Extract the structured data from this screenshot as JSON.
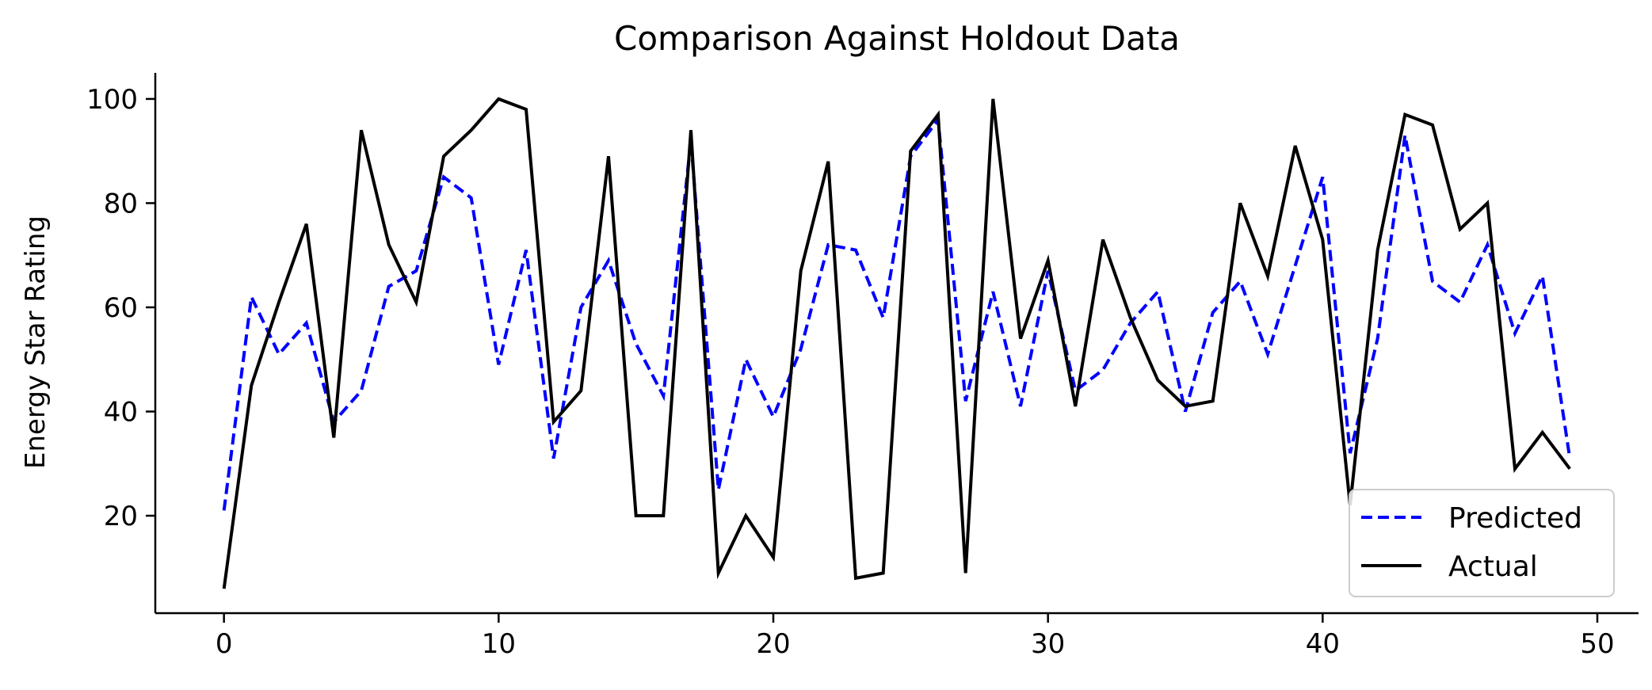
{
  "chart_data": {
    "type": "line",
    "title": "Comparison Against Holdout Data",
    "xlabel": "",
    "ylabel": "Energy Star Rating",
    "xlim": [
      -2.5,
      51.5
    ],
    "ylim": [
      1.3,
      105
    ],
    "xticks": [
      0,
      10,
      20,
      30,
      40,
      50
    ],
    "yticks": [
      20,
      40,
      60,
      80,
      100
    ],
    "grid": false,
    "legend_position": "lower right",
    "x": [
      0,
      1,
      2,
      3,
      4,
      5,
      6,
      7,
      8,
      9,
      10,
      11,
      12,
      13,
      14,
      15,
      16,
      17,
      18,
      19,
      20,
      21,
      22,
      23,
      24,
      25,
      26,
      27,
      28,
      29,
      30,
      31,
      32,
      33,
      34,
      35,
      36,
      37,
      38,
      39,
      40,
      41,
      42,
      43,
      44,
      45,
      46,
      47,
      48,
      49
    ],
    "series": [
      {
        "name": "Predicted",
        "color": "#0000ff",
        "style": "dashed",
        "values": [
          21,
          62,
          51,
          57,
          38,
          44,
          64,
          67,
          85,
          81,
          49,
          71,
          31,
          60,
          69,
          53,
          43,
          92,
          25,
          50,
          39,
          52,
          72,
          71,
          58,
          89,
          96,
          42,
          63,
          41,
          67,
          44,
          48,
          57,
          63,
          40,
          59,
          65,
          51,
          68,
          85,
          32,
          54,
          93,
          65,
          61,
          72,
          55,
          66,
          31
        ]
      },
      {
        "name": "Actual",
        "color": "#000000",
        "style": "solid",
        "values": [
          6,
          45,
          61,
          76,
          35,
          94,
          72,
          61,
          89,
          94,
          100,
          98,
          38,
          44,
          89,
          20,
          20,
          94,
          9,
          20,
          12,
          67,
          88,
          8,
          9,
          90,
          97,
          9,
          100,
          54,
          69,
          41,
          73,
          58,
          46,
          41,
          42,
          80,
          66,
          91,
          73,
          22,
          71,
          97,
          95,
          75,
          80,
          29,
          36,
          29
        ]
      }
    ]
  }
}
